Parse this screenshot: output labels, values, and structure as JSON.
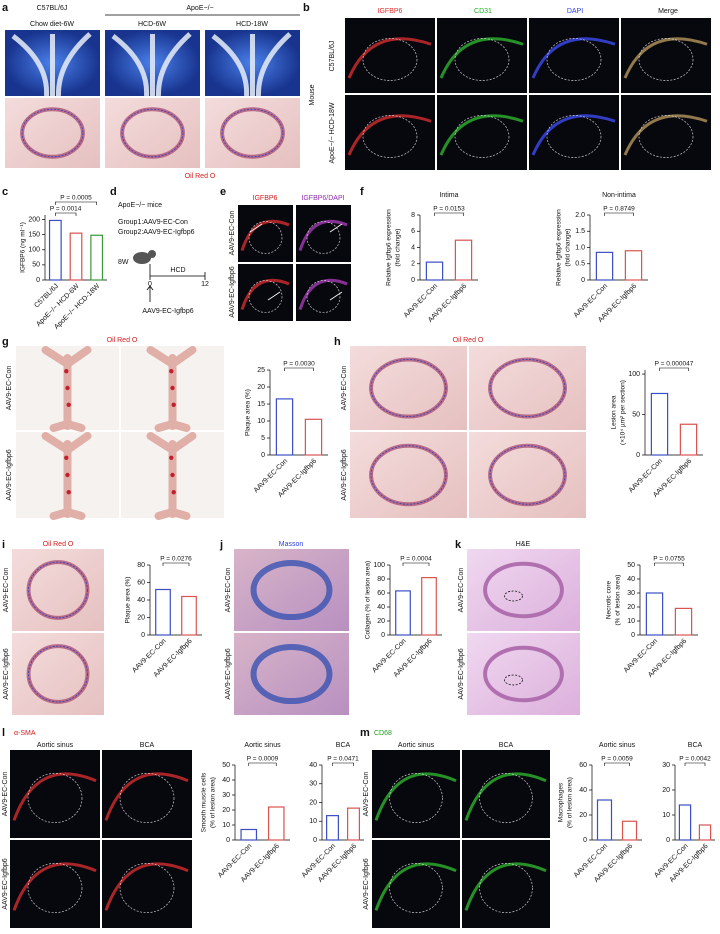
{
  "panel_letters": [
    "a",
    "b",
    "c",
    "d",
    "e",
    "f",
    "g",
    "h",
    "i",
    "j",
    "k",
    "l",
    "m"
  ],
  "labels": {
    "a": [
      "C57BL/6J",
      "ApoE−/−",
      "Chow diet-6W",
      "HCD-6W",
      "HCD-18W",
      "Oil Red O"
    ],
    "b": [
      "IGFBP6",
      "CD31",
      "DAPI",
      "Merge",
      "Mouse",
      "C57BL/6J",
      "ApoE−/− HCD-18W"
    ],
    "d": [
      "ApoE−/− mice",
      "Group1:AAV9-EC-Con",
      "Group2:AAV9-EC-Igfbp6",
      "8W",
      "HCD",
      "0",
      "12",
      "AAV9-EC-Igfbp6"
    ],
    "e": [
      "IGFBP6",
      "IGFBP6/DAPI",
      "AAV9-EC-Con",
      "AAV9-EC-Igfbp6"
    ],
    "g": [
      "Oil Red O",
      "AAV9-EC-Con",
      "AAV9-EC-Igfbp6"
    ],
    "h": [
      "Oil Red O",
      "AAV9-EC-Con",
      "AAV9-EC-Igfbp6"
    ],
    "i": [
      "Oil Red O",
      "AAV9-EC-Con",
      "AAV9-EC-Igfbp6"
    ],
    "j": [
      "Masson",
      "AAV9-EC-Con",
      "AAV9-EC-Igfbp6"
    ],
    "k": [
      "H&E",
      "AAV9-EC-Con",
      "AAV9-EC-Igfbp6"
    ],
    "l": [
      "α-SMA",
      "Aortic sinus",
      "BCA",
      "AAV9-EC-Con",
      "AAV9-EC-Igfbp6"
    ],
    "m": [
      "CD68",
      "Aortic sinus",
      "BCA",
      "AAV9-EC-Con",
      "AAV9-EC-Igfbp6"
    ]
  },
  "chart_data": [
    {
      "type": "bar",
      "ylabel": [
        "IGFBP6 (ng ml⁻¹)"
      ],
      "categories": [
        "C57BL/6J",
        "ApoE−/− HCD-6W",
        "ApoE−/− HCD-18W"
      ],
      "values": [
        197,
        155,
        148
      ],
      "colors": [
        "#3b4fc4",
        "#d9534f",
        "#3a9a3a"
      ],
      "ylim": [
        0,
        215
      ],
      "yticks": [
        0,
        50,
        100,
        150,
        200
      ],
      "annotations": [
        "P = 0.0014",
        "P = 0.0005"
      ]
    },
    {
      "type": "bar",
      "title": "Intima",
      "ylabel": [
        "Relative Igfbp6 expression",
        "(fold change)"
      ],
      "categories": [
        "AAV9-EC-Con",
        "AAV9-EC-Igfbp6"
      ],
      "values": [
        2.2,
        4.9
      ],
      "colors": [
        "#3b4fc4",
        "#d9534f"
      ],
      "ylim": [
        0,
        8
      ],
      "yticks": [
        0,
        2,
        4,
        6,
        8
      ],
      "annotations": [
        "P = 0.0153"
      ]
    },
    {
      "type": "bar",
      "title": "Non-intima",
      "ylabel": [
        "Relative Igfbp6 expression",
        "(fold change)"
      ],
      "categories": [
        "AAV9-EC-Con",
        "AAV9-EC-Igfbp6"
      ],
      "values": [
        0.85,
        0.9
      ],
      "colors": [
        "#3b4fc4",
        "#d9534f"
      ],
      "ylim": [
        0,
        2
      ],
      "yticks": [
        0,
        0.5,
        {
          "value": 1,
          "label": "1.0"
        },
        1.5,
        {
          "value": 2,
          "label": "2.0"
        }
      ],
      "annotations": [
        "P = 0.8749"
      ]
    },
    {
      "type": "bar",
      "ylabel": [
        "Plaque area (%)"
      ],
      "categories": [
        "AAV9-EC-Con",
        "AAV9-EC-Igfbp6"
      ],
      "values": [
        16.5,
        10.5
      ],
      "colors": [
        "#3b4fc4",
        "#d9534f"
      ],
      "ylim": [
        0,
        25
      ],
      "yticks": [
        0,
        5,
        10,
        15,
        20,
        25
      ],
      "annotations": [
        "P = 0.0030"
      ]
    },
    {
      "type": "bar",
      "ylabel": [
        "Lesion area",
        "(×10⁴ µm² per section)"
      ],
      "categories": [
        "AAV9-EC-Con",
        "AAV9-EC-Igfbp6"
      ],
      "values": [
        76,
        38
      ],
      "colors": [
        "#3b4fc4",
        "#d9534f"
      ],
      "ylim": [
        0,
        105
      ],
      "yticks": [
        0,
        50,
        100
      ],
      "annotations": [
        "P = 0.000047"
      ]
    },
    {
      "type": "bar",
      "ylabel": [
        "Plaque area (%)"
      ],
      "categories": [
        "AAV9-EC-Con",
        "AAV9-EC-Igfbp6"
      ],
      "values": [
        52,
        44
      ],
      "colors": [
        "#3b4fc4",
        "#d9534f"
      ],
      "ylim": [
        0,
        80
      ],
      "yticks": [
        0,
        20,
        40,
        60,
        80
      ],
      "annotations": [
        "P = 0.0276"
      ]
    },
    {
      "type": "bar",
      "ylabel": [
        "Collagen (% of lesion area)"
      ],
      "categories": [
        "AAV9-EC-Con",
        "AAV9-EC-Igfbp6"
      ],
      "values": [
        63,
        82
      ],
      "colors": [
        "#3b4fc4",
        "#d9534f"
      ],
      "ylim": [
        0,
        100
      ],
      "yticks": [
        0,
        20,
        40,
        60,
        80,
        100
      ],
      "annotations": [
        "P = 0.0004"
      ]
    },
    {
      "type": "bar",
      "ylabel": [
        "Necrotic core",
        "(% of lesion area)"
      ],
      "categories": [
        "AAV9-EC-Con",
        "AAV9-EC-Igfbp6"
      ],
      "values": [
        30,
        19
      ],
      "colors": [
        "#3b4fc4",
        "#d9534f"
      ],
      "ylim": [
        0,
        50
      ],
      "yticks": [
        0,
        10,
        20,
        30,
        40,
        50
      ],
      "annotations": [
        "P = 0.0755"
      ]
    },
    {
      "type": "bar",
      "title": "Aortic sinus",
      "ylabel": [
        "Smooth muscle cells",
        "(% of lesion area)"
      ],
      "categories": [
        "AAV9-EC-Con",
        "AAV9-EC-Igfbp6"
      ],
      "values": [
        7,
        22
      ],
      "colors": [
        "#3b4fc4",
        "#d9534f"
      ],
      "ylim": [
        0,
        50
      ],
      "yticks": [
        0,
        10,
        20,
        30,
        40,
        50
      ],
      "annotations": [
        "P = 0.0009"
      ]
    },
    {
      "type": "bar",
      "title": "BCA",
      "categories": [
        "AAV9-EC-Con",
        "AAV9-EC-Igfbp6"
      ],
      "values": [
        13,
        17
      ],
      "colors": [
        "#3b4fc4",
        "#d9534f"
      ],
      "ylim": [
        0,
        40
      ],
      "yticks": [
        0,
        10,
        20,
        30,
        40
      ],
      "annotations": [
        "P = 0.0471"
      ]
    },
    {
      "type": "bar",
      "title": "Aortic sinus",
      "ylabel": [
        "Macrophages",
        "(% of lesion area)"
      ],
      "categories": [
        "AAV9-EC-Con",
        "AAV9-EC-Igfbp6"
      ],
      "values": [
        32,
        15
      ],
      "colors": [
        "#3b4fc4",
        "#d9534f"
      ],
      "ylim": [
        0,
        60
      ],
      "yticks": [
        0,
        20,
        40,
        60
      ],
      "annotations": [
        "P = 0.0059"
      ]
    },
    {
      "type": "bar",
      "title": "BCA",
      "categories": [
        "AAV9-EC-Con",
        "AAV9-EC-Igfbp6"
      ],
      "values": [
        14,
        6
      ],
      "colors": [
        "#3b4fc4",
        "#d9534f"
      ],
      "ylim": [
        0,
        30
      ],
      "yticks": [
        0,
        10,
        20,
        30
      ],
      "annotations": [
        "P = 0.0042"
      ]
    }
  ]
}
